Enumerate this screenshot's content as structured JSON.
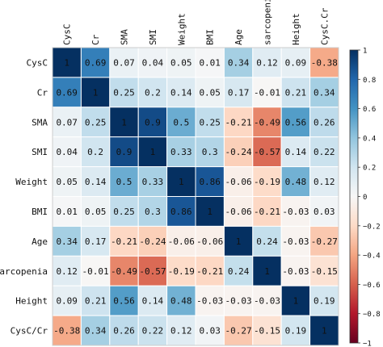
{
  "chart_data": {
    "type": "heatmap",
    "title": "",
    "labels": [
      "CysC",
      "Cr",
      "SMA",
      "SMI",
      "Weight",
      "BMI",
      "Age",
      "sarcopenia",
      "Height",
      "CysC/Cr"
    ],
    "column_labels": [
      "CysC",
      "Cr",
      "SMA",
      "SMI",
      "Weight",
      "BMI",
      "Age",
      "sarcopenia",
      "Height",
      "CysC.Cr"
    ],
    "row_labels": [
      "CysC",
      "Cr",
      "SMA",
      "SMI",
      "Weight",
      "BMI",
      "Age",
      "sarcopenia",
      "Height",
      "CysC/Cr"
    ],
    "cell_labels": [
      [
        "1",
        "0.69",
        "0.07",
        "0.04",
        "0.05",
        "0.01",
        "0.34",
        "0.12",
        "0.09",
        "-0.38"
      ],
      [
        "0.69",
        "1",
        "0.25",
        "0.2",
        "0.14",
        "0.05",
        "0.17",
        "-0.01",
        "0.21",
        "0.34"
      ],
      [
        "0.07",
        "0.25",
        "1",
        "0.9",
        "0.5",
        "0.25",
        "-0.21",
        "-0.49",
        "0.56",
        "0.26"
      ],
      [
        "0.04",
        "0.2",
        "0.9",
        "1",
        "0.33",
        "0.3",
        "-0.24",
        "-0.57",
        "0.14",
        "0.22"
      ],
      [
        "0.05",
        "0.14",
        "0.5",
        "0.33",
        "1",
        "0.86",
        "-0.06",
        "-0.19",
        "0.48",
        "0.12"
      ],
      [
        "0.01",
        "0.05",
        "0.25",
        "0.3",
        "0.86",
        "1",
        "-0.06",
        "-0.21",
        "-0.03",
        "0.03"
      ],
      [
        "0.34",
        "0.17",
        "-0.21",
        "-0.24",
        "-0.06",
        "-0.06",
        "1",
        "0.24",
        "-0.03",
        "-0.27"
      ],
      [
        "0.12",
        "-0.01",
        "-0.49",
        "-0.57",
        "-0.19",
        "-0.21",
        "0.24",
        "1",
        "-0.03",
        "-0.15"
      ],
      [
        "0.09",
        "0.21",
        "0.56",
        "0.14",
        "0.48",
        "-0.03",
        "-0.03",
        "-0.03",
        "1",
        "0.19"
      ],
      [
        "-0.38",
        "0.34",
        "0.26",
        "0.22",
        "0.12",
        "0.03",
        "-0.27",
        "-0.15",
        "0.19",
        "1"
      ]
    ],
    "values": [
      [
        1,
        0.69,
        0.07,
        0.04,
        0.05,
        0.01,
        0.34,
        0.12,
        0.09,
        -0.38
      ],
      [
        0.69,
        1,
        0.25,
        0.2,
        0.14,
        0.05,
        0.17,
        -0.01,
        0.21,
        0.34
      ],
      [
        0.07,
        0.25,
        1,
        0.9,
        0.5,
        0.25,
        -0.21,
        -0.49,
        0.56,
        0.26
      ],
      [
        0.04,
        0.2,
        0.9,
        1,
        0.33,
        0.3,
        -0.24,
        -0.57,
        0.14,
        0.22
      ],
      [
        0.05,
        0.14,
        0.5,
        0.33,
        1,
        0.86,
        -0.06,
        -0.19,
        0.48,
        0.12
      ],
      [
        0.01,
        0.05,
        0.25,
        0.3,
        0.86,
        1,
        -0.06,
        -0.21,
        -0.03,
        0.03
      ],
      [
        0.34,
        0.17,
        -0.21,
        -0.24,
        -0.06,
        -0.06,
        1,
        0.24,
        -0.03,
        -0.27
      ],
      [
        0.12,
        -0.01,
        -0.49,
        -0.57,
        -0.19,
        -0.21,
        0.24,
        1,
        -0.03,
        -0.15
      ],
      [
        0.09,
        0.21,
        0.56,
        0.14,
        0.48,
        -0.03,
        -0.03,
        -0.03,
        1,
        0.19
      ],
      [
        -0.38,
        0.34,
        0.26,
        0.22,
        0.12,
        0.03,
        -0.27,
        -0.15,
        0.19,
        1
      ]
    ],
    "colorbar": {
      "range": [
        -1,
        1
      ],
      "ticks": [
        1,
        0.8,
        0.6,
        0.4,
        0.2,
        0,
        -0.2,
        -0.4,
        -0.6,
        -0.8,
        -1
      ],
      "tick_labels": [
        "1",
        "0.8",
        "0.6",
        "0.4",
        "0.2",
        "0",
        "−0.2",
        "−0.4",
        "−0.6",
        "−0.8",
        "−1"
      ],
      "colormap": "RdBu",
      "colors": {
        "negative": "#67001f",
        "zero": "#f7f7f7",
        "positive": "#053061"
      }
    },
    "grid": true,
    "legend": "colorbar-right"
  }
}
